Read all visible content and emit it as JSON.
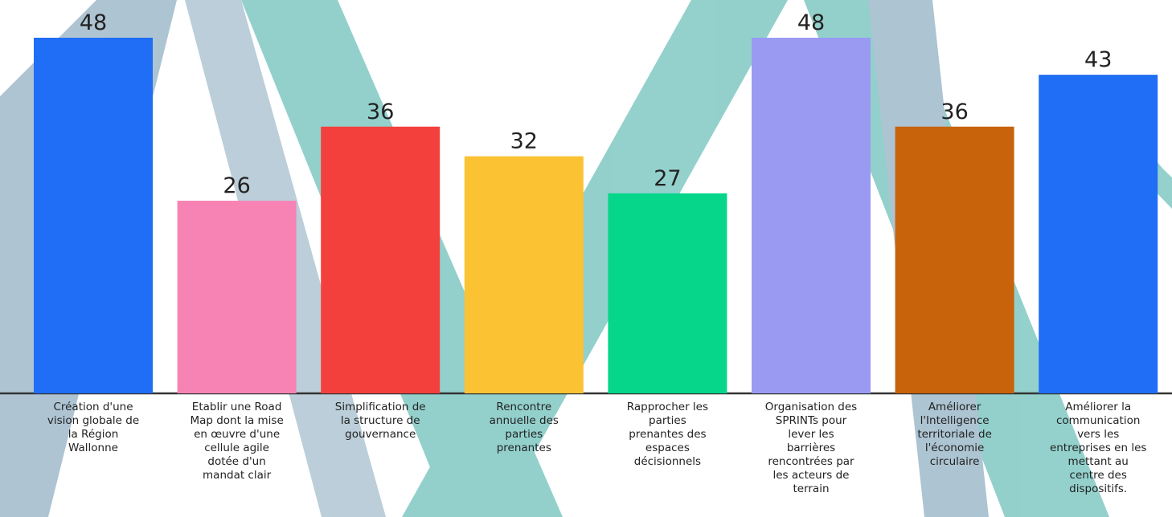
{
  "chart_data": {
    "type": "bar",
    "categories": [
      [
        "Création d'une",
        "vision globale de",
        "la Région",
        "Wallonne"
      ],
      [
        "Etablir une Road",
        "Map dont la mise",
        "en œuvre d'une",
        "cellule agile",
        "dotée d'un",
        "mandat clair"
      ],
      [
        "Simplification de",
        "la structure de",
        "gouvernance"
      ],
      [
        "Rencontre",
        "annuelle des",
        "parties",
        "prenantes"
      ],
      [
        "Rapprocher les",
        "parties",
        "prenantes des",
        "espaces",
        "décisionnels"
      ],
      [
        "Organisation des",
        "SPRINTs pour",
        "lever les",
        "barrières",
        "rencontrées par",
        "les acteurs de",
        "terrain"
      ],
      [
        "Améliorer",
        "l'Intelligence",
        "territoriale de",
        "l'économie",
        "circulaire"
      ],
      [
        "Améliorer la",
        "communication",
        "vers les",
        "entreprises en les",
        "mettant au",
        "centre des",
        "dispositifs."
      ]
    ],
    "values": [
      48,
      26,
      36,
      32,
      27,
      48,
      36,
      43
    ],
    "colors": [
      "#1f6ef5",
      "#f783b5",
      "#f4403c",
      "#fbc234",
      "#05d68a",
      "#9a9af2",
      "#c8620b",
      "#1f6ef5"
    ]
  }
}
